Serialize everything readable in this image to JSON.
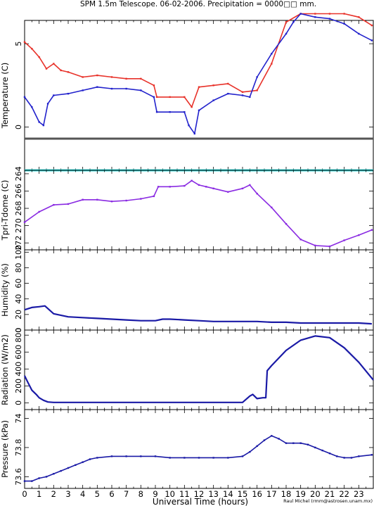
{
  "title": "SPM 1.5m Telescope. 06-02-2006. Precipitation = 0000□□ mm.",
  "xlabel": "Universal Time (hours)",
  "credit": "Raul Michel  (rmm@astrosen.unam.mx)",
  "x_ticks": [
    0,
    1,
    2,
    3,
    4,
    5,
    6,
    7,
    8,
    9,
    10,
    11,
    12,
    13,
    14,
    15,
    16,
    17,
    18,
    19,
    20,
    21,
    22,
    23
  ],
  "colors": {
    "red": "#e8322a",
    "blue": "#2222cc",
    "purple": "#8a2be2",
    "cyan": "#33dddd",
    "gray": "#555555",
    "navy": "#1a1aa6"
  },
  "chart_data": [
    {
      "id": "temperature",
      "type": "scatter",
      "ylabel": "Temperature (C)",
      "yticks": [
        0,
        5
      ],
      "ylim": [
        -2.6,
        6.4
      ],
      "xlim": [
        0,
        24
      ],
      "reference_lines": [
        {
          "name": "gray-line",
          "y": -0.7,
          "color": "#555555"
        },
        {
          "name": "cyan-line",
          "y": -2.6,
          "color": "#33dddd"
        }
      ],
      "series": [
        {
          "color": "#e8322a",
          "x": [
            0,
            0.5,
            1,
            1.5,
            2,
            2.5,
            3,
            4,
            5,
            6,
            7,
            8,
            8.9,
            9.1,
            10,
            11,
            11.5,
            12,
            13,
            14,
            15,
            16,
            17,
            18,
            19,
            20,
            21,
            22,
            23,
            23.9
          ],
          "y": [
            5.1,
            4.7,
            4.2,
            3.5,
            3.8,
            3.4,
            3.3,
            3.0,
            3.1,
            3.0,
            2.9,
            2.9,
            2.5,
            1.8,
            1.8,
            1.8,
            1.2,
            2.4,
            2.5,
            2.6,
            2.1,
            2.2,
            3.8,
            6.3,
            6.8,
            6.8,
            6.8,
            6.8,
            6.6,
            6.1
          ]
        },
        {
          "color": "#2222cc",
          "x": [
            0,
            0.5,
            1,
            1.3,
            1.6,
            2,
            3,
            4,
            5,
            6,
            7,
            8,
            8.9,
            9.1,
            10,
            11,
            11.3,
            11.7,
            12,
            13,
            14,
            15,
            15.5,
            16,
            17,
            18,
            18.5,
            19,
            20,
            21,
            22,
            23,
            23.9
          ],
          "y": [
            1.8,
            1.2,
            0.3,
            0.1,
            1.4,
            1.9,
            2.0,
            2.2,
            2.4,
            2.3,
            2.3,
            2.2,
            1.8,
            0.9,
            0.9,
            0.9,
            0.1,
            -0.4,
            1.0,
            1.6,
            2.0,
            1.9,
            1.8,
            3.0,
            4.4,
            5.6,
            6.3,
            6.8,
            6.6,
            6.5,
            6.2,
            5.6,
            5.2
          ]
        }
      ]
    },
    {
      "id": "tpri-tdome",
      "type": "scatter",
      "ylabel": "Tpri-Tdome (C)",
      "ytick_labels": [
        "264",
        "266",
        "268",
        "270",
        "272"
      ],
      "yticks": [
        -264,
        -266,
        -268,
        -270,
        -272
      ],
      "ylim": [
        -272.8,
        -263.6
      ],
      "xlim": [
        0,
        24
      ],
      "series": [
        {
          "color": "#8a2be2",
          "x": [
            0,
            1,
            2,
            3,
            4,
            5,
            6,
            7,
            8,
            8.9,
            9.2,
            10,
            11,
            11.5,
            12,
            12.5,
            13,
            14,
            15,
            15.5,
            16,
            17,
            18,
            19,
            20,
            21,
            22,
            23,
            23.9
          ],
          "y": [
            -269.6,
            -268.4,
            -267.6,
            -267.5,
            -267.0,
            -267.0,
            -267.2,
            -267.1,
            -266.9,
            -266.6,
            -265.5,
            -265.5,
            -265.4,
            -264.8,
            -265.3,
            -265.5,
            -265.7,
            -266.1,
            -265.7,
            -265.3,
            -266.3,
            -267.9,
            -269.8,
            -271.6,
            -272.3,
            -272.4,
            -271.7,
            -271.1,
            -270.5
          ]
        }
      ]
    },
    {
      "id": "humidity",
      "type": "line",
      "ylabel": "Humidity (%)",
      "yticks": [
        0,
        20,
        40,
        60,
        80,
        100
      ],
      "ylim": [
        0,
        103
      ],
      "xlim": [
        0,
        24
      ],
      "series": [
        {
          "color": "#1a1aa6",
          "x": [
            0,
            0.5,
            1,
            1.4,
            2,
            3,
            4,
            5,
            6,
            7,
            8,
            9,
            9.5,
            10,
            11,
            12,
            13,
            14,
            15,
            16,
            17,
            18,
            19,
            20,
            21,
            22,
            23,
            23.9
          ],
          "y": [
            26,
            29,
            30,
            31,
            21,
            17,
            16,
            15,
            14,
            13,
            12,
            12,
            14,
            14,
            13,
            12,
            11,
            11,
            11,
            11,
            10,
            10,
            9,
            9,
            9,
            9,
            9,
            8
          ]
        }
      ]
    },
    {
      "id": "radiation",
      "type": "line",
      "ylabel": "Radiation (W/m2)",
      "yticks": [
        0,
        200,
        400,
        600,
        800
      ],
      "ylim": [
        -80,
        860
      ],
      "xlim": [
        0,
        24
      ],
      "series": [
        {
          "color": "#1a1aa6",
          "x": [
            0,
            0.2,
            0.5,
            0.8,
            1,
            1.3,
            1.6,
            2,
            3,
            4,
            5,
            6,
            7,
            8,
            9,
            10,
            11,
            12,
            13,
            14,
            15,
            15.5,
            15.7,
            16,
            16.4,
            16.6,
            16.7,
            17,
            18,
            19,
            20,
            21,
            22,
            23,
            24
          ],
          "y": [
            320,
            250,
            150,
            100,
            60,
            30,
            10,
            5,
            5,
            5,
            5,
            5,
            5,
            5,
            5,
            5,
            5,
            5,
            5,
            5,
            5,
            80,
            100,
            50,
            60,
            60,
            380,
            440,
            620,
            740,
            790,
            770,
            650,
            480,
            270
          ]
        }
      ]
    },
    {
      "id": "pressure",
      "type": "scatter",
      "ylabel": "Pressure (kPa)",
      "yticks": [
        73.6,
        73.8,
        74.0
      ],
      "ylim": [
        73.52,
        74.06
      ],
      "xlim": [
        0,
        24
      ],
      "series": [
        {
          "color": "#1a1aa6",
          "x": [
            0,
            0.5,
            1,
            1.5,
            2,
            2.5,
            3,
            3.5,
            4,
            4.5,
            5,
            6,
            7,
            8,
            9,
            10,
            11,
            12,
            13,
            14,
            15,
            15.5,
            16,
            16.5,
            17,
            17.5,
            18,
            18.5,
            19,
            19.5,
            20,
            20.5,
            21,
            21.5,
            22,
            22.5,
            23,
            23.9
          ],
          "y": [
            73.57,
            73.57,
            73.59,
            73.6,
            73.62,
            73.64,
            73.66,
            73.68,
            73.7,
            73.72,
            73.73,
            73.74,
            73.74,
            73.74,
            73.74,
            73.73,
            73.73,
            73.73,
            73.73,
            73.73,
            73.74,
            73.77,
            73.81,
            73.85,
            73.88,
            73.86,
            73.83,
            73.83,
            73.83,
            73.82,
            73.8,
            73.78,
            73.76,
            73.74,
            73.73,
            73.73,
            73.74,
            73.75
          ]
        }
      ]
    }
  ]
}
